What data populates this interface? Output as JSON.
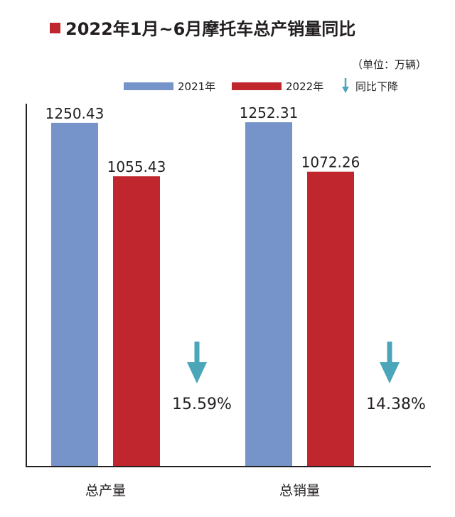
{
  "chart_data": {
    "type": "bar",
    "title": "2022年1月~6月摩托车总产销量同比",
    "unit_note": "（单位：万辆）",
    "categories": [
      "总产量",
      "总销量"
    ],
    "series": [
      {
        "name": "2021年",
        "values": [
          1250.43,
          1252.31
        ],
        "color": "#7694c9"
      },
      {
        "name": "2022年",
        "values": [
          1055.43,
          1072.26
        ],
        "color": "#c0262e"
      }
    ],
    "value_labels": [
      [
        "1250.43",
        "1252.31"
      ],
      [
        "1055.43",
        "1072.26"
      ]
    ],
    "decline_legend": "同比下降",
    "declines": [
      "15.59%",
      "14.38%"
    ],
    "decline_arrow_color": "#4aa6b8",
    "title_marker_color": "#c0262e",
    "ylim": [
      0,
      1320
    ],
    "grid": false,
    "legend_position": "top-right"
  }
}
